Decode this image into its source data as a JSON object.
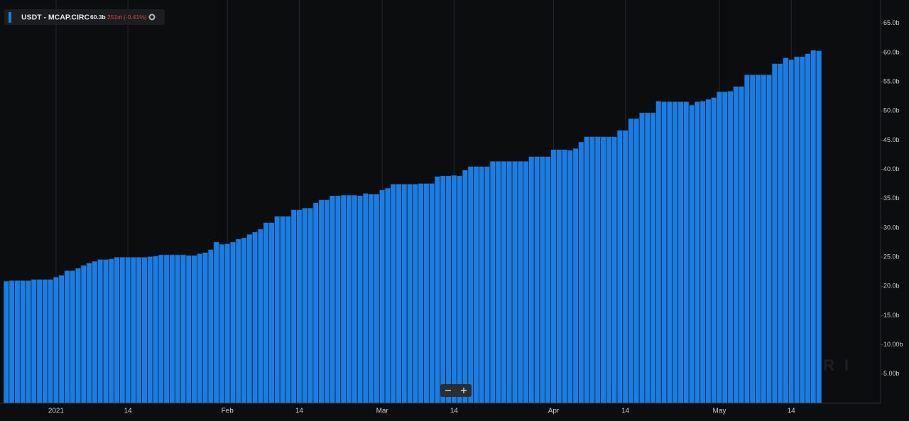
{
  "chart_data": {
    "type": "bar",
    "legend": {
      "name": "USDT - MCAP.CIRC",
      "value": "60.3b",
      "change": "251m",
      "change_pct": "(-0.41%)"
    },
    "watermark": "MESSARI",
    "color": "#1c7ce0",
    "categories": [
      null,
      null,
      null,
      null,
      null,
      null,
      null,
      null,
      null,
      "2021",
      null,
      null,
      null,
      null,
      null,
      null,
      null,
      null,
      null,
      null,
      null,
      null,
      "14",
      null,
      null,
      null,
      null,
      null,
      null,
      null,
      null,
      null,
      null,
      null,
      null,
      null,
      null,
      null,
      null,
      null,
      "Feb",
      null,
      null,
      null,
      null,
      null,
      null,
      null,
      null,
      null,
      null,
      null,
      null,
      "14",
      null,
      null,
      null,
      null,
      null,
      null,
      null,
      null,
      null,
      null,
      null,
      null,
      null,
      null,
      "Mar",
      null,
      null,
      null,
      null,
      null,
      null,
      null,
      null,
      null,
      null,
      null,
      null,
      "14",
      null,
      null,
      null,
      null,
      null,
      null,
      null,
      null,
      null,
      null,
      null,
      null,
      null,
      null,
      null,
      null,
      null,
      "Apr",
      null,
      null,
      null,
      null,
      null,
      null,
      null,
      null,
      null,
      null,
      null,
      null,
      "14",
      null,
      null,
      null,
      null,
      null,
      null,
      null,
      null,
      null,
      null,
      null,
      null,
      null,
      null,
      null,
      null,
      "May",
      null,
      null,
      null,
      null,
      null,
      null,
      null,
      null,
      null,
      null,
      null,
      null,
      "14",
      null,
      null,
      null,
      null,
      null
    ],
    "values": [
      20.9,
      21.0,
      21.0,
      21.0,
      21.0,
      21.2,
      21.2,
      21.2,
      21.2,
      21.6,
      21.9,
      22.7,
      22.7,
      23.1,
      23.6,
      24.0,
      24.3,
      24.6,
      24.6,
      24.7,
      25.0,
      25.0,
      25.0,
      25.0,
      25.0,
      25.0,
      25.1,
      25.2,
      25.4,
      25.4,
      25.4,
      25.4,
      25.4,
      25.3,
      25.3,
      25.6,
      25.8,
      26.3,
      27.6,
      27.2,
      27.3,
      27.6,
      28.1,
      28.3,
      28.9,
      29.3,
      29.8,
      30.9,
      30.9,
      32.0,
      32.0,
      32.0,
      33.1,
      33.1,
      33.4,
      33.4,
      34.3,
      34.8,
      34.8,
      35.5,
      35.5,
      35.6,
      35.6,
      35.6,
      35.5,
      35.9,
      35.8,
      35.8,
      36.5,
      36.8,
      37.5,
      37.5,
      37.5,
      37.5,
      37.5,
      37.6,
      37.6,
      37.6,
      38.8,
      38.9,
      38.9,
      39.0,
      38.9,
      39.9,
      40.5,
      40.5,
      40.5,
      40.5,
      41.4,
      41.4,
      41.4,
      41.4,
      41.4,
      41.4,
      41.4,
      42.2,
      42.2,
      42.2,
      42.2,
      43.4,
      43.4,
      43.4,
      43.3,
      43.6,
      44.7,
      45.6,
      45.6,
      45.6,
      45.6,
      45.6,
      45.6,
      46.7,
      46.7,
      48.7,
      48.7,
      49.7,
      49.7,
      49.7,
      51.7,
      51.6,
      51.6,
      51.6,
      51.6,
      51.6,
      51.0,
      51.6,
      51.7,
      52.0,
      52.3,
      53.3,
      53.3,
      53.4,
      54.2,
      54.2,
      56.2,
      56.2,
      56.2,
      56.2,
      56.2,
      58.1,
      58.1,
      59.1,
      58.8,
      59.3,
      59.3,
      59.8,
      60.4,
      60.3
    ],
    "ylim": [
      0,
      68
    ],
    "yticks": [
      {
        "value": 5,
        "label": "5.00b"
      },
      {
        "value": 10,
        "label": "10.00b"
      },
      {
        "value": 15,
        "label": "15.0b"
      },
      {
        "value": 20,
        "label": "20.0b"
      },
      {
        "value": 25,
        "label": "25.0b"
      },
      {
        "value": 30,
        "label": "30.0b"
      },
      {
        "value": 35,
        "label": "35.0b"
      },
      {
        "value": 40,
        "label": "40.0b"
      },
      {
        "value": 45,
        "label": "45.0b"
      },
      {
        "value": 50,
        "label": "50.0b"
      },
      {
        "value": 55,
        "label": "55.0b"
      },
      {
        "value": 60,
        "label": "60.0b"
      },
      {
        "value": 65,
        "label": "65.0b"
      }
    ]
  }
}
